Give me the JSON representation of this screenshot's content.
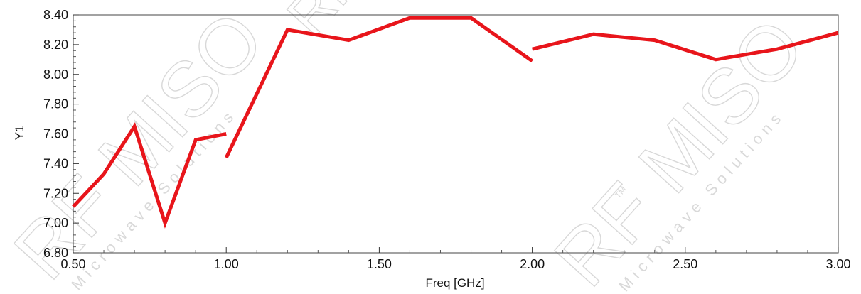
{
  "chart_data": {
    "type": "line",
    "xlabel": "Freq [GHz]",
    "ylabel": "Y1",
    "xlim": [
      0.5,
      3.0
    ],
    "ylim": [
      6.8,
      8.4
    ],
    "x_ticks": [
      "0.50",
      "1.00",
      "1.50",
      "2.00",
      "2.50",
      "3.00"
    ],
    "y_ticks": [
      "6.80",
      "7.00",
      "7.20",
      "7.40",
      "7.60",
      "7.80",
      "8.00",
      "8.20",
      "8.40"
    ],
    "grid": false,
    "line_color": "#e8151b",
    "series": [
      {
        "segments": [
          [
            [
              0.5,
              7.11
            ],
            [
              0.6,
              7.33
            ],
            [
              0.7,
              7.65
            ],
            [
              0.8,
              7.0
            ],
            [
              0.9,
              7.56
            ],
            [
              1.0,
              7.6
            ]
          ],
          [
            [
              1.0,
              7.44
            ],
            [
              1.2,
              8.3
            ],
            [
              1.4,
              8.23
            ],
            [
              1.6,
              8.38
            ],
            [
              1.8,
              8.38
            ],
            [
              2.0,
              8.09
            ]
          ],
          [
            [
              2.0,
              8.17
            ],
            [
              2.2,
              8.27
            ],
            [
              2.4,
              8.23
            ],
            [
              2.6,
              8.1
            ],
            [
              2.8,
              8.17
            ],
            [
              3.0,
              8.28
            ]
          ]
        ]
      }
    ]
  },
  "watermark": {
    "brand": "RF MISO",
    "tagline": "Microwave Solutions",
    "tm": "TM"
  }
}
